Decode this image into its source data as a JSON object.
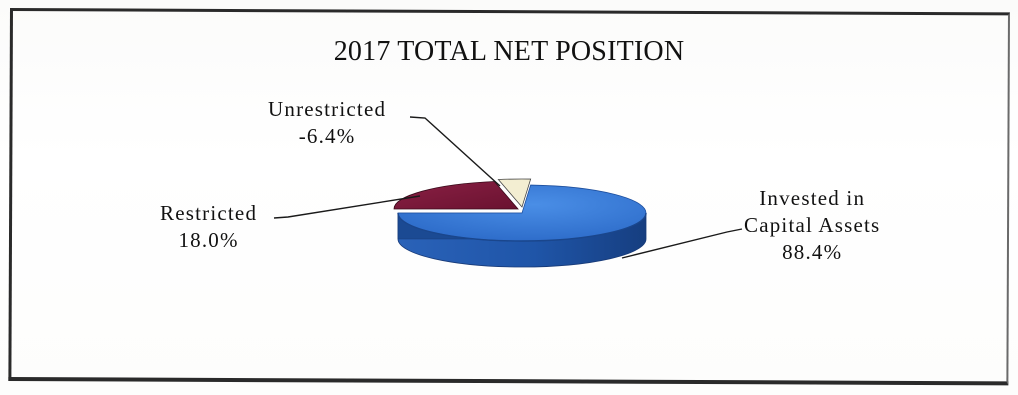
{
  "chart_data": {
    "type": "pie",
    "style": "3d-exploded-pie",
    "title": "2017 TOTAL NET POSITION",
    "slices": [
      {
        "label_lines": [
          "Invested in",
          "Capital Assets"
        ],
        "value_text": "88.4%",
        "value": 88.4,
        "color": "#2f6fcf"
      },
      {
        "label_lines": [
          "Restricted"
        ],
        "value_text": "18.0%",
        "value": 18.0,
        "color": "#7a1838"
      },
      {
        "label_lines": [
          "Unrestricted"
        ],
        "value_text": "-6.4%",
        "value": -6.4,
        "color": "#f3eed2"
      }
    ],
    "colors": {
      "border": "#2a2a2a",
      "leader": "#1a1a1a",
      "invested_side": "#1d4f9e",
      "restricted_side": "#4a0e22"
    }
  }
}
